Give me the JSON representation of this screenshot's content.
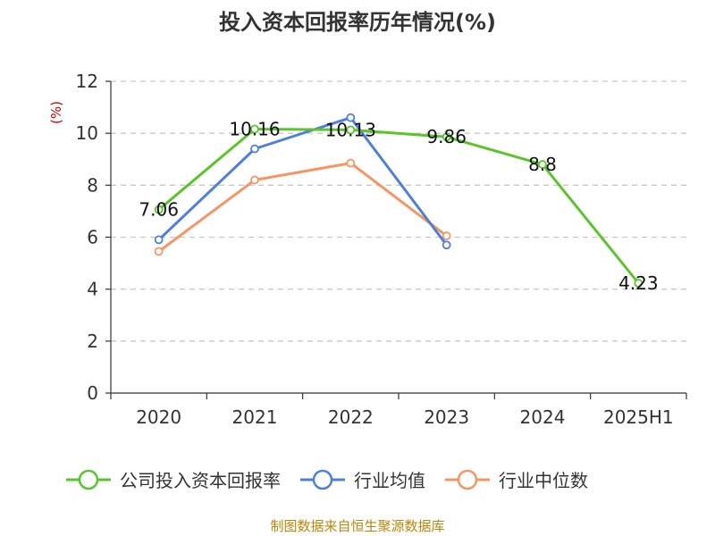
{
  "chart_data": {
    "type": "line",
    "title": "投入资本回报率历年情况(%)",
    "ylabel": "(%)",
    "xlabel": "",
    "categories": [
      "2020",
      "2021",
      "2022",
      "2023",
      "2024",
      "2025H1"
    ],
    "ylim": [
      0,
      12
    ],
    "yticks": [
      0,
      2,
      4,
      6,
      8,
      10,
      12
    ],
    "grid": true,
    "legend_position": "bottom",
    "series": [
      {
        "name": "公司投入资本回报率",
        "color": "#5bc42c",
        "values": [
          7.06,
          10.16,
          10.13,
          9.86,
          8.8,
          4.23
        ],
        "labels": [
          "7.06",
          "10.16",
          "10.13",
          "9.86",
          "8.8",
          "4.23"
        ]
      },
      {
        "name": "行业均值",
        "color": "#4f7fdc",
        "values": [
          5.9,
          9.4,
          10.6,
          5.7,
          null,
          null
        ]
      },
      {
        "name": "行业中位数",
        "color": "#f59563",
        "values": [
          5.45,
          8.2,
          8.85,
          6.05,
          null,
          null
        ]
      }
    ],
    "source": "制图数据来自恒生聚源数据库"
  }
}
